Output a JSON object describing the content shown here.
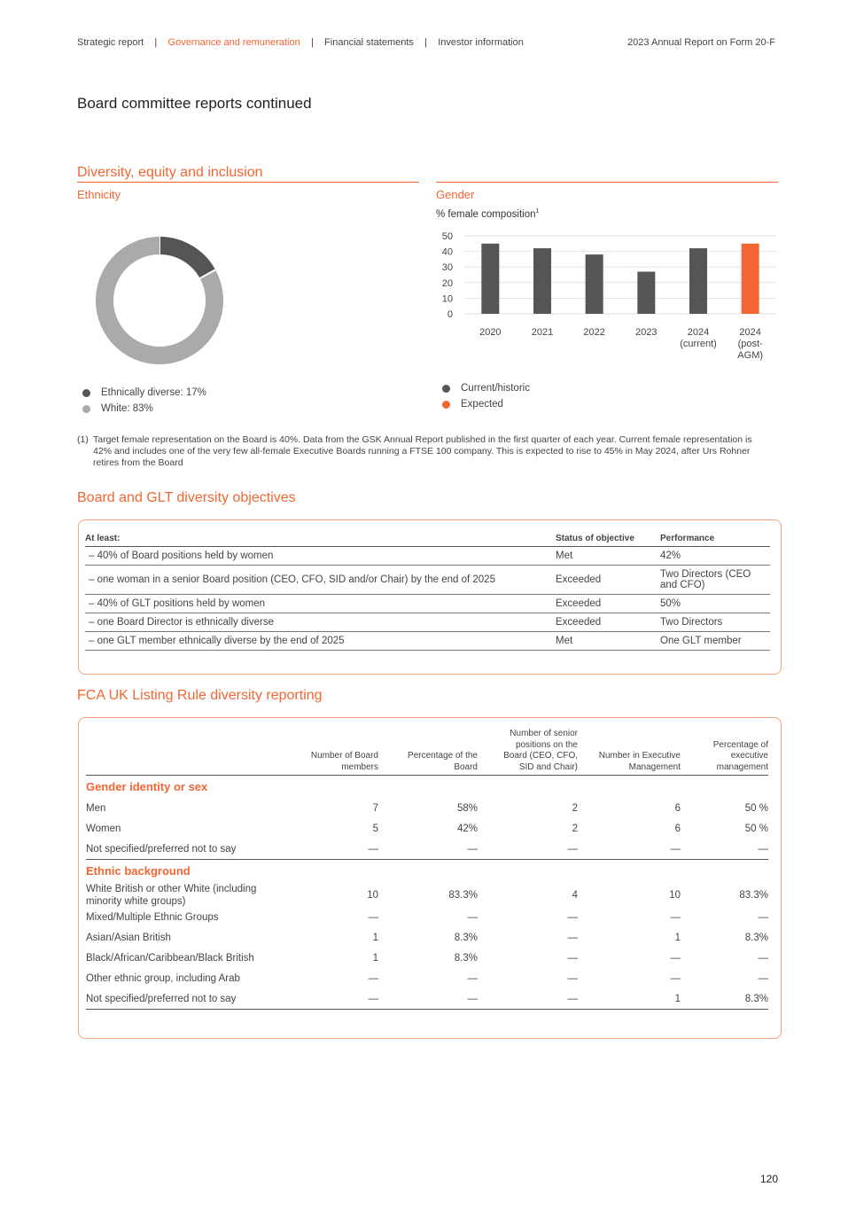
{
  "header": {
    "nav": [
      "Strategic report",
      "Governance and remuneration",
      "Financial statements",
      "Investor information"
    ],
    "active": 1,
    "report_title": "2023 Annual Report on Form 20-F"
  },
  "page_title": "Board committee reports continued",
  "dei": {
    "title": "Diversity, equity and inclusion",
    "ethnicity": {
      "subtitle": "Ethnicity",
      "legend": [
        "Ethnically diverse: 17%",
        "White: 83%"
      ]
    },
    "gender": {
      "subtitle": "Gender",
      "label": "% female composition",
      "footnote_mark": "1",
      "legend": [
        "Current/historic",
        "Expected"
      ]
    }
  },
  "colors": {
    "accent": "#f36633",
    "dark": "#555555",
    "light": "#aaaaaa"
  },
  "chart_data": [
    {
      "type": "pie",
      "variant": "donut",
      "slices": [
        {
          "label": "Ethnically diverse",
          "value": 17,
          "color": "#555555"
        },
        {
          "label": "White",
          "value": 83,
          "color": "#aaaaaa"
        }
      ]
    },
    {
      "type": "bar",
      "ylabel": "% female composition",
      "ylim": [
        0,
        50
      ],
      "yticks": [
        "0",
        "10",
        "20",
        "30",
        "40",
        "50"
      ],
      "grid": true,
      "categories": [
        [
          "2020"
        ],
        [
          "2021"
        ],
        [
          "2022"
        ],
        [
          "2023"
        ],
        [
          "2024",
          "(current)"
        ],
        [
          "2024",
          "(post-",
          "AGM)"
        ]
      ],
      "values": [
        45,
        42,
        38,
        27,
        42,
        45
      ],
      "series_colors": [
        "#555555",
        "#555555",
        "#555555",
        "#555555",
        "#555555",
        "#f36633"
      ]
    }
  ],
  "footnote": {
    "mark": "(1)",
    "text": "Target female representation on the Board is 40%. Data from the GSK Annual Report published in the first quarter of each year. Current female representation is 42% and includes one of the very few all-female Executive Boards running a FTSE 100 company. This is expected to rise to 45% in May 2024, after Urs Rohner retires from the Board"
  },
  "objectives": {
    "title": "Board and GLT diversity objectives",
    "headers": [
      "At least:",
      "Status of objective",
      "Performance"
    ],
    "rows": [
      [
        "– 40% of Board positions held by women",
        "Met",
        "42%"
      ],
      [
        "– one woman in a senior Board position (CEO, CFO, SID and/or Chair) by the end of 2025",
        "Exceeded",
        "Two Directors (CEO and CFO)"
      ],
      [
        "– 40% of GLT positions held by women",
        "Exceeded",
        "50%"
      ],
      [
        "– one Board Director is ethnically diverse",
        "Exceeded",
        "Two Directors"
      ],
      [
        "– one GLT member ethnically diverse by the end of 2025",
        "Met",
        "One GLT member"
      ]
    ]
  },
  "fca": {
    "title": "FCA UK Listing Rule diversity reporting",
    "headers": [
      "",
      "Number of Board members",
      "Percentage of the Board",
      "Number of senior positions on the Board (CEO, CFO, SID and Chair)",
      "Number in  Executive Management",
      "Percentage of executive management"
    ],
    "sections": [
      {
        "title": "Gender identity or sex",
        "rows": [
          [
            "Men",
            "7",
            "58%",
            "2",
            "6",
            "50 %"
          ],
          [
            "Women",
            "5",
            "42%",
            "2",
            "6",
            "50 %"
          ],
          [
            "Not specified/preferred not to say",
            "—",
            "—",
            "—",
            "—",
            "—"
          ]
        ]
      },
      {
        "title": "Ethnic background",
        "rows": [
          [
            "White British or other White (including minority white groups)",
            "10",
            "83.3%",
            "4",
            "10",
            "83.3%"
          ],
          [
            "Mixed/Multiple Ethnic Groups",
            "—",
            "—",
            "—",
            "—",
            "—"
          ],
          [
            "Asian/Asian British",
            "1",
            "8.3%",
            "—",
            "1",
            "8.3%"
          ],
          [
            "Black/African/Caribbean/Black British",
            "1",
            "8.3%",
            "—",
            "—",
            "—"
          ],
          [
            "Other ethnic group, including Arab",
            "—",
            "—",
            "—",
            "—",
            "—"
          ],
          [
            "Not specified/preferred not to say",
            "—",
            "—",
            "—",
            "1",
            "8.3%"
          ]
        ]
      }
    ]
  },
  "page_number": "120"
}
